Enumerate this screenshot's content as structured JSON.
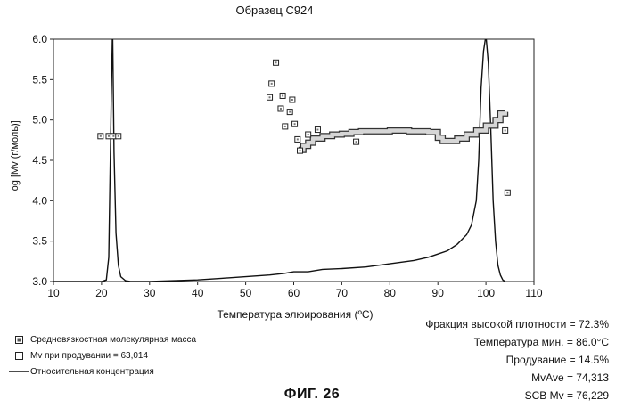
{
  "figure_label": "ФИГ. 26",
  "legend": {
    "items": [
      {
        "marker": "filled-square-icon",
        "label": "Средневязкостная молекулярная масса"
      },
      {
        "marker": "open-square-icon",
        "label": "Mv  при продувании  = 63,014"
      },
      {
        "marker": "line-icon",
        "label": "Относительная концентрация"
      }
    ]
  },
  "stats": [
    "Фракция высокой плотности = 72.3%",
    "Температура мин. = 86.0°C",
    "Продувание = 14.5%",
    "MvAve = 74,313",
    "SCB Mv = 76,229"
  ],
  "chart_data": {
    "type": "line",
    "title": "Образец  C924",
    "xlabel": "Температура элюирования (ºC)",
    "ylabel": "log [Mv (г/моль)]",
    "xlim": [
      10,
      110
    ],
    "ylim": [
      3.0,
      6.0
    ],
    "xticks": [
      "10",
      "20",
      "30",
      "40",
      "50",
      "60",
      "70",
      "80",
      "90",
      "100",
      "110"
    ],
    "yticks": [
      "3.0",
      "3.5",
      "4.0",
      "4.5",
      "5.0",
      "5.5",
      "6.0"
    ],
    "grid": false,
    "series": [
      {
        "name": "Относительная концентрация",
        "kind": "line",
        "x": [
          10,
          20,
          21,
          21.5,
          22,
          22.3,
          22.6,
          23,
          23.5,
          24,
          25,
          26,
          30,
          40,
          45,
          50,
          55,
          58,
          60,
          63,
          66,
          70,
          75,
          80,
          85,
          88,
          90,
          92,
          94,
          95,
          96,
          97,
          98,
          98.5,
          99,
          99.5,
          100,
          100.5,
          101,
          101.5,
          102,
          102.5,
          103,
          103.5,
          104
        ],
        "y": [
          3.0,
          3.0,
          3.02,
          3.3,
          5.2,
          6.15,
          4.6,
          3.6,
          3.2,
          3.06,
          3.01,
          3.0,
          3.0,
          3.02,
          3.04,
          3.06,
          3.08,
          3.1,
          3.12,
          3.12,
          3.15,
          3.16,
          3.18,
          3.22,
          3.26,
          3.3,
          3.34,
          3.38,
          3.46,
          3.52,
          3.58,
          3.7,
          4.0,
          4.5,
          5.4,
          5.85,
          6.05,
          5.7,
          4.9,
          4.0,
          3.5,
          3.2,
          3.08,
          3.02,
          3.0
        ]
      },
      {
        "name": "Средневязкостная молекулярная масса",
        "kind": "band",
        "x": [
          61,
          62,
          63,
          64,
          66,
          68,
          70,
          72,
          74,
          76,
          78,
          80,
          82,
          84,
          86,
          88,
          90,
          91,
          92,
          94,
          96,
          98,
          100,
          102,
          103,
          104
        ],
        "y": [
          4.63,
          4.68,
          4.72,
          4.77,
          4.8,
          4.82,
          4.83,
          4.85,
          4.86,
          4.86,
          4.86,
          4.87,
          4.87,
          4.86,
          4.86,
          4.85,
          4.78,
          4.74,
          4.74,
          4.77,
          4.82,
          4.87,
          4.93,
          5.0,
          5.08,
          5.1
        ]
      },
      {
        "name": "Mv при продувании",
        "kind": "scatter",
        "x": [
          19.8,
          21.5,
          22.5,
          23.5,
          55,
          55.4,
          56.3,
          57.3,
          57.7,
          58.2,
          59.2,
          59.7,
          60.2,
          60.8,
          61.3,
          63,
          65,
          73,
          104,
          104.5
        ],
        "y": [
          4.8,
          4.8,
          4.8,
          4.8,
          5.28,
          5.45,
          5.71,
          5.14,
          5.3,
          4.92,
          5.1,
          5.25,
          4.95,
          4.76,
          4.62,
          4.82,
          4.88,
          4.73,
          4.87,
          4.1
        ]
      }
    ]
  }
}
